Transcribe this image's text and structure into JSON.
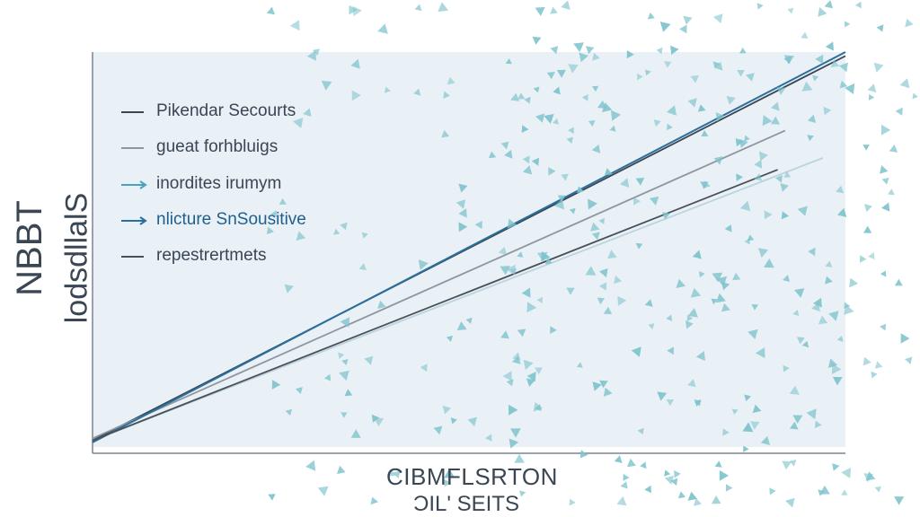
{
  "chart_data": {
    "type": "line",
    "title": "",
    "ylabel": "NBBT",
    "ylabel_sub": "lodsdllalS",
    "xlabel": "CIBMFLSRTON",
    "xlabel_sub": "ƆIL' SEITS",
    "xlim": [
      0,
      10
    ],
    "ylim": [
      0,
      10
    ],
    "grid": false,
    "legend_position": "top-left",
    "plot_background": "#e9f0f6",
    "series": [
      {
        "name": "Pikendar Secourts",
        "color": "#3c4650",
        "x": [
          0,
          10.0
        ],
        "y": [
          0.1,
          9.9
        ]
      },
      {
        "name": "gueat forhbluigs",
        "color": "#8e96a0",
        "x": [
          0,
          9.2
        ],
        "y": [
          0.15,
          8.0
        ]
      },
      {
        "name": "inordites irumym",
        "color": "#bcd4de",
        "x": [
          0,
          9.7
        ],
        "y": [
          0.1,
          7.3
        ]
      },
      {
        "name": "nlicture SnSousitive",
        "color": "#2a6f9e",
        "x": [
          0,
          10.0
        ],
        "y": [
          0.05,
          10.0
        ]
      },
      {
        "name": "repestrertmets",
        "color": "#4a5058",
        "x": [
          0,
          9.1
        ],
        "y": [
          0.1,
          7.0
        ]
      }
    ],
    "scatter_color": "#7ec3cc"
  }
}
